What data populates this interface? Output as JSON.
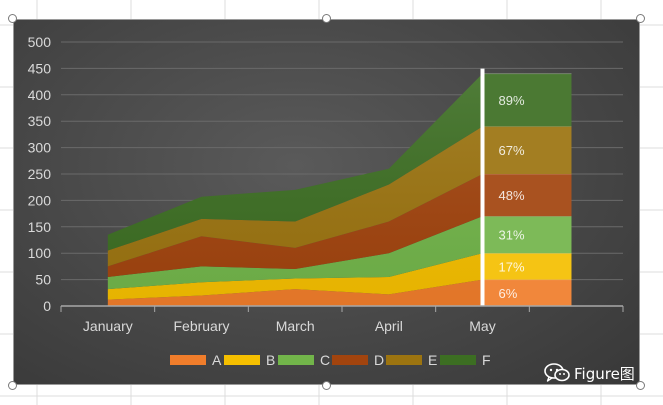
{
  "chart_data": {
    "type": "area",
    "stacked": true,
    "categories": [
      "January",
      "February",
      "March",
      "April",
      "May"
    ],
    "series": [
      {
        "name": "A",
        "color": "#F07D2B",
        "values": [
          12,
          20,
          32,
          22,
          50
        ]
      },
      {
        "name": "B",
        "color": "#F5BF00",
        "values": [
          20,
          25,
          20,
          33,
          50
        ]
      },
      {
        "name": "C",
        "color": "#72B54A",
        "values": [
          23,
          30,
          18,
          45,
          70
        ]
      },
      {
        "name": "D",
        "color": "#A2440E",
        "values": [
          20,
          57,
          40,
          60,
          80
        ]
      },
      {
        "name": "E",
        "color": "#9C7410",
        "values": [
          30,
          33,
          50,
          70,
          90
        ]
      },
      {
        "name": "F",
        "color": "#3C6E22",
        "values": [
          30,
          42,
          60,
          30,
          100
        ]
      }
    ],
    "ylim": [
      0,
      500
    ],
    "yticks": [
      0,
      50,
      100,
      150,
      200,
      250,
      300,
      350,
      400,
      450,
      500
    ],
    "gridlines": true,
    "legend_position": "bottom",
    "title": "",
    "xlabel": "",
    "ylabel": "",
    "highlight": {
      "category": "May",
      "labels": [
        "6%",
        "17%",
        "31%",
        "48%",
        "67%",
        "89%"
      ]
    }
  },
  "watermark": {
    "text": "Figure图",
    "icon": "wechat-icon"
  }
}
